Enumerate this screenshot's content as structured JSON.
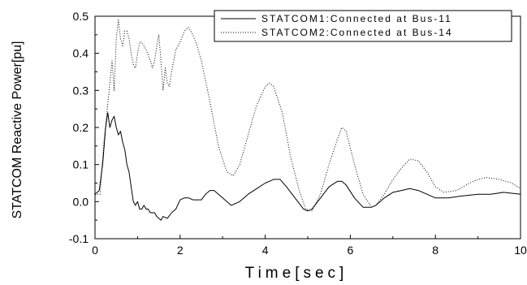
{
  "chart_data": {
    "type": "line",
    "title": "",
    "xlabel": "Time[sec]",
    "ylabel": "STATCOM Reactive Power[pu]",
    "xlim": [
      0,
      10
    ],
    "ylim": [
      -0.1,
      0.5
    ],
    "x_ticks": [
      "0",
      "2",
      "4",
      "6",
      "8",
      "10"
    ],
    "y_ticks": [
      "-0.1",
      "0.0",
      "0.1",
      "0.2",
      "0.3",
      "0.4",
      "0.5"
    ],
    "grid": false,
    "legend_position": "top-right",
    "series": [
      {
        "name": "STATCOM1:Connected at Bus-11",
        "style": "solid",
        "color": "#000000",
        "x": [
          0.0,
          0.1,
          0.18,
          0.25,
          0.3,
          0.35,
          0.4,
          0.45,
          0.5,
          0.55,
          0.6,
          0.65,
          0.7,
          0.75,
          0.8,
          0.85,
          0.9,
          0.95,
          1.0,
          1.05,
          1.1,
          1.15,
          1.2,
          1.25,
          1.3,
          1.35,
          1.4,
          1.45,
          1.5,
          1.55,
          1.6,
          1.7,
          1.8,
          1.9,
          2.0,
          2.1,
          2.2,
          2.3,
          2.4,
          2.5,
          2.6,
          2.7,
          2.8,
          2.9,
          3.0,
          3.2,
          3.4,
          3.6,
          3.8,
          4.0,
          4.2,
          4.35,
          4.5,
          4.7,
          4.9,
          5.0,
          5.1,
          5.3,
          5.5,
          5.7,
          5.8,
          5.9,
          6.1,
          6.3,
          6.5,
          6.6,
          6.8,
          7.0,
          7.2,
          7.4,
          7.6,
          7.8,
          8.0,
          8.3,
          8.6,
          9.0,
          9.3,
          9.6,
          10.0
        ],
        "y": [
          0.02,
          0.03,
          0.1,
          0.2,
          0.24,
          0.2,
          0.22,
          0.23,
          0.2,
          0.18,
          0.19,
          0.16,
          0.14,
          0.1,
          0.08,
          0.04,
          0.0,
          -0.01,
          0.0,
          -0.02,
          -0.02,
          -0.01,
          -0.02,
          -0.02,
          -0.03,
          -0.03,
          -0.03,
          -0.04,
          -0.045,
          -0.05,
          -0.04,
          -0.045,
          -0.03,
          -0.02,
          0.005,
          0.01,
          0.01,
          0.005,
          0.005,
          0.005,
          0.02,
          0.03,
          0.03,
          0.02,
          0.01,
          -0.01,
          0.0,
          0.02,
          0.035,
          0.05,
          0.06,
          0.06,
          0.04,
          0.01,
          -0.02,
          -0.025,
          -0.02,
          0.01,
          0.04,
          0.055,
          0.055,
          0.045,
          0.01,
          -0.015,
          -0.015,
          -0.01,
          0.01,
          0.025,
          0.03,
          0.035,
          0.03,
          0.02,
          0.01,
          0.01,
          0.015,
          0.02,
          0.02,
          0.025,
          0.02
        ]
      },
      {
        "name": "STATCOM2:Connected at Bus-14",
        "style": "dotted",
        "color": "#000000",
        "x": [
          0.0,
          0.12,
          0.2,
          0.28,
          0.35,
          0.4,
          0.45,
          0.5,
          0.55,
          0.6,
          0.65,
          0.7,
          0.75,
          0.8,
          0.85,
          0.9,
          0.95,
          1.0,
          1.05,
          1.1,
          1.2,
          1.3,
          1.35,
          1.4,
          1.45,
          1.5,
          1.55,
          1.6,
          1.65,
          1.7,
          1.75,
          1.8,
          1.85,
          1.9,
          2.0,
          2.1,
          2.2,
          2.3,
          2.4,
          2.5,
          2.7,
          2.9,
          3.1,
          3.25,
          3.4,
          3.6,
          3.8,
          4.0,
          4.1,
          4.2,
          4.4,
          4.6,
          4.8,
          4.95,
          5.1,
          5.3,
          5.5,
          5.7,
          5.8,
          5.9,
          6.1,
          6.3,
          6.5,
          6.6,
          6.8,
          7.0,
          7.2,
          7.4,
          7.6,
          7.8,
          8.0,
          8.2,
          8.5,
          8.8,
          9.0,
          9.2,
          9.5,
          9.8,
          10.0
        ],
        "y": [
          0.02,
          0.02,
          0.15,
          0.24,
          0.32,
          0.38,
          0.3,
          0.44,
          0.49,
          0.44,
          0.42,
          0.46,
          0.46,
          0.44,
          0.4,
          0.37,
          0.36,
          0.4,
          0.43,
          0.43,
          0.41,
          0.38,
          0.36,
          0.38,
          0.42,
          0.45,
          0.38,
          0.3,
          0.36,
          0.32,
          0.31,
          0.35,
          0.38,
          0.41,
          0.43,
          0.46,
          0.47,
          0.45,
          0.42,
          0.38,
          0.27,
          0.15,
          0.08,
          0.07,
          0.1,
          0.18,
          0.26,
          0.31,
          0.32,
          0.31,
          0.24,
          0.12,
          0.03,
          -0.02,
          -0.025,
          0.02,
          0.1,
          0.17,
          0.2,
          0.19,
          0.1,
          0.02,
          -0.015,
          -0.01,
          0.02,
          0.06,
          0.09,
          0.115,
          0.11,
          0.08,
          0.04,
          0.025,
          0.03,
          0.05,
          0.06,
          0.065,
          0.06,
          0.05,
          0.035
        ]
      }
    ]
  }
}
